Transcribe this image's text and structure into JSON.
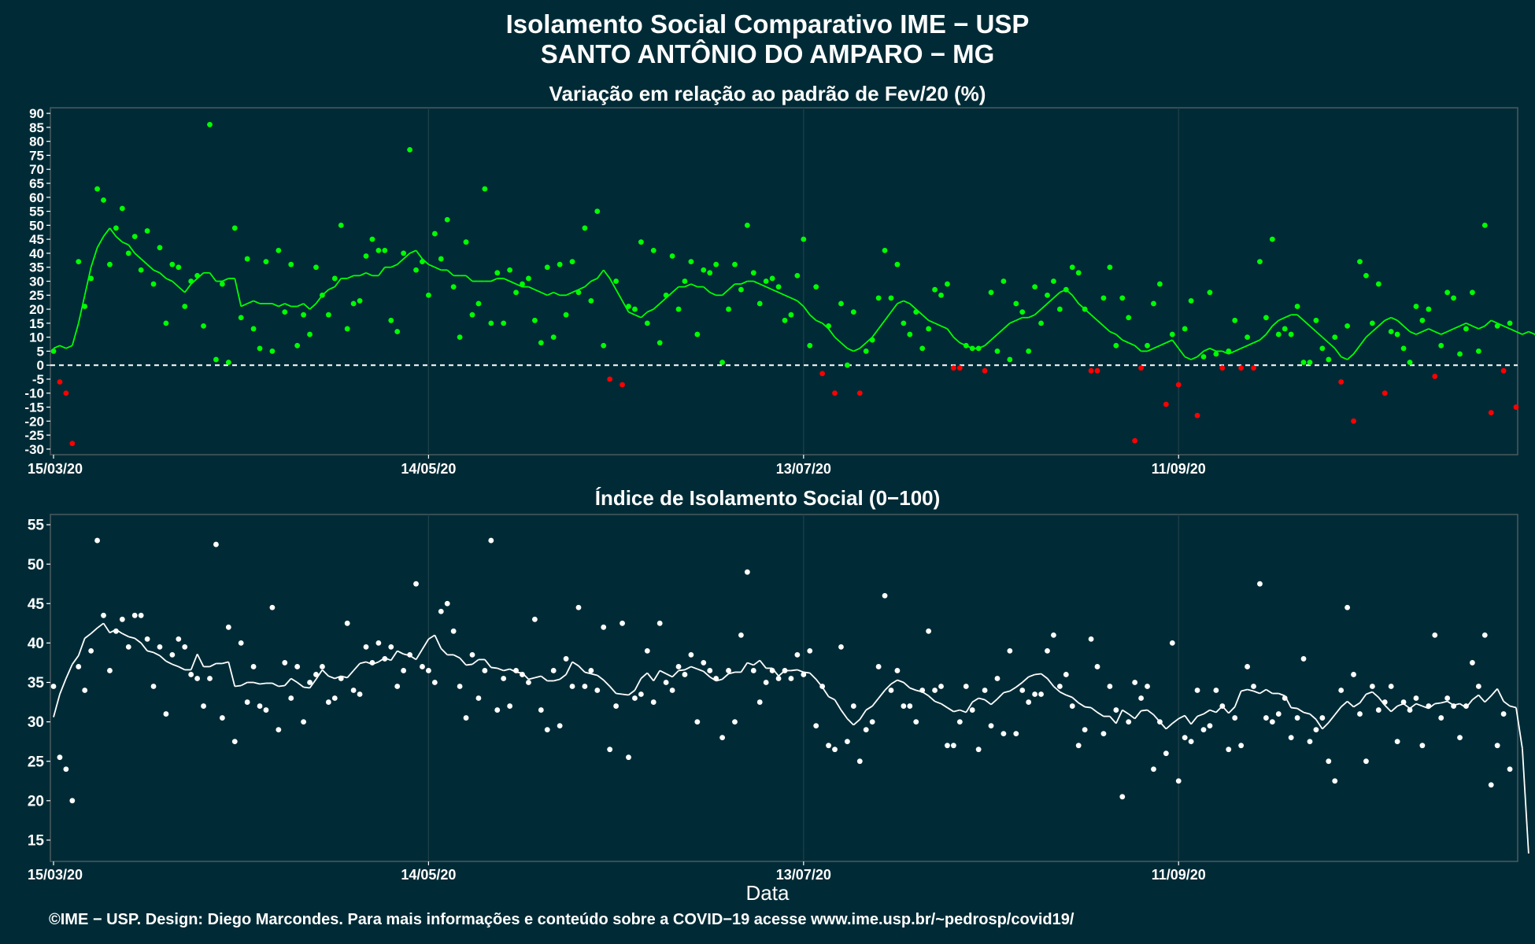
{
  "header": {
    "title": "Isolamento Social Comparativo IME − USP",
    "subtitle": "SANTO ANTÔNIO DO AMPARO − MG"
  },
  "footer": {
    "text": "©IME − USP. Design: Diego Marcondes. Para mais informações e conteúdo sobre a COVID−19 acesse www.ime.usp.br/~pedrosp/covid19/"
  },
  "colors": {
    "background": "#002b36",
    "positive": "#00ff00",
    "negative": "#ff0000",
    "index": "#ffffff"
  },
  "chart_data": [
    {
      "type": "scatter",
      "title": "Variação em relação ao padrão de Fev/20 (%)",
      "xlabel": "",
      "ylabel": "",
      "x_start": "15/03/20",
      "x_ticks": [
        "15/03/20",
        "14/05/20",
        "13/07/20",
        "11/09/20"
      ],
      "x_tick_day_offsets": [
        0,
        60,
        120,
        180
      ],
      "ylim": [
        -32,
        92
      ],
      "y_ticks": [
        90,
        85,
        80,
        75,
        70,
        65,
        60,
        55,
        50,
        45,
        40,
        35,
        30,
        25,
        20,
        15,
        10,
        5,
        0,
        -5,
        -10,
        -15,
        -20,
        -25,
        -30
      ],
      "reference_line": 0,
      "points": [
        5,
        -6,
        -10,
        -28,
        37,
        21,
        31,
        63,
        59,
        36,
        49,
        56,
        40,
        46,
        34,
        48,
        29,
        42,
        15,
        36,
        35,
        21,
        30,
        32,
        14,
        86,
        2,
        29,
        1,
        49,
        17,
        38,
        13,
        6,
        37,
        5,
        41,
        19,
        36,
        7,
        18,
        11,
        35,
        25,
        18,
        31,
        50,
        13,
        22,
        23,
        39,
        45,
        41,
        41,
        16,
        12,
        40,
        77,
        34,
        37,
        25,
        47,
        38,
        52,
        28,
        10,
        44,
        18,
        22,
        63,
        15,
        33,
        15,
        34,
        26,
        29,
        31,
        16,
        8,
        35,
        10,
        36,
        18,
        37,
        26,
        49,
        23,
        55,
        7,
        -5,
        30,
        -7,
        21,
        20,
        44,
        15,
        41,
        8,
        25,
        39,
        20,
        30,
        37,
        11,
        34,
        33,
        36,
        1,
        20,
        36,
        27,
        50,
        33,
        22,
        30,
        31,
        28,
        16,
        18,
        32,
        45,
        7,
        28,
        -3,
        14,
        -10,
        22,
        0,
        19,
        -10,
        5,
        9,
        24,
        41,
        24,
        36,
        15,
        11,
        19,
        6,
        13,
        27,
        25,
        29,
        -1,
        -1,
        7,
        6,
        6,
        -2,
        26,
        5,
        30,
        2,
        22,
        19,
        5,
        28,
        15,
        25,
        30,
        20,
        27,
        35,
        33,
        20,
        -2,
        -2,
        24,
        35,
        7,
        24,
        17,
        -27,
        -1,
        7,
        22,
        29,
        -14,
        11,
        -7,
        13,
        23,
        -18,
        3,
        26,
        4,
        -1,
        5,
        16,
        -1,
        10,
        -1,
        37,
        17,
        45,
        11,
        13,
        11,
        21,
        1,
        1,
        16,
        6,
        2,
        10,
        -6,
        14,
        -20,
        37,
        32,
        15,
        29,
        -10,
        12,
        11,
        6,
        1,
        21,
        16,
        20,
        -4,
        7,
        26,
        24,
        4,
        13,
        26,
        5,
        50,
        -17,
        14,
        -2,
        15,
        -15
      ],
      "moving_average": [
        6,
        7,
        6,
        7,
        15,
        25,
        35,
        42,
        46,
        49,
        46,
        44,
        43,
        40,
        38,
        36,
        34,
        33,
        31,
        30,
        28,
        26,
        29,
        31,
        33,
        33,
        30,
        30,
        31,
        31,
        21,
        22,
        23,
        22,
        22,
        22,
        21,
        22,
        21,
        21,
        22,
        20,
        22,
        25,
        27,
        28,
        31,
        31,
        32,
        32,
        33,
        32,
        32,
        35,
        35,
        36,
        38,
        40,
        41,
        38,
        36,
        35,
        34,
        34,
        32,
        32,
        32,
        30,
        30,
        30,
        30,
        31,
        31,
        30,
        29,
        28,
        28,
        27,
        26,
        25,
        26,
        25,
        25,
        26,
        27,
        28,
        30,
        31,
        34,
        31,
        27,
        23,
        19,
        18,
        17,
        19,
        20,
        22,
        24,
        26,
        28,
        28,
        29,
        28,
        28,
        26,
        25,
        25,
        27,
        29,
        29,
        30,
        30,
        29,
        28,
        27,
        26,
        25,
        24,
        23,
        21,
        18,
        16,
        15,
        13,
        10,
        8,
        6,
        5,
        6,
        8,
        10,
        13,
        16,
        19,
        22,
        23,
        22,
        20,
        18,
        16,
        15,
        14,
        13,
        10,
        8,
        7,
        6,
        6,
        7,
        9,
        11,
        13,
        15,
        16,
        17,
        17,
        18,
        20,
        22,
        24,
        26,
        27,
        25,
        22,
        20,
        18,
        16,
        14,
        12,
        11,
        9,
        8,
        7,
        5,
        5,
        6,
        7,
        8,
        9,
        6,
        3,
        2,
        3,
        5,
        6,
        5,
        5,
        4,
        5,
        6,
        7,
        8,
        9,
        11,
        14,
        16,
        17,
        18,
        18,
        16,
        14,
        12,
        10,
        8,
        6,
        3,
        2,
        4,
        7,
        10,
        12,
        14,
        16,
        17,
        16,
        14,
        12,
        11,
        12,
        13,
        12,
        11,
        12,
        13,
        14,
        15,
        14,
        13,
        14,
        16,
        15,
        14,
        13,
        12,
        11,
        12,
        11,
        9
      ]
    },
    {
      "type": "scatter",
      "title": "Índice de Isolamento Social (0−100)",
      "xlabel": "Data",
      "ylabel": "",
      "x_start": "15/03/20",
      "x_ticks": [
        "15/03/20",
        "14/05/20",
        "13/07/20",
        "11/09/20"
      ],
      "x_tick_day_offsets": [
        0,
        60,
        120,
        180
      ],
      "ylim": [
        12.3,
        56.3
      ],
      "y_ticks": [
        55,
        50,
        45,
        40,
        35,
        30,
        25,
        20,
        15
      ],
      "points": [
        34.5,
        25.5,
        24,
        20,
        37,
        34,
        39,
        53,
        43.5,
        36.5,
        41.5,
        43,
        39.5,
        43.5,
        43.5,
        40.5,
        34.5,
        39.5,
        31,
        38.5,
        40.5,
        39.5,
        36,
        35.5,
        32,
        35.5,
        52.5,
        30.5,
        42,
        27.5,
        40,
        32.5,
        37,
        32,
        31.5,
        44.5,
        29,
        37.5,
        33,
        37,
        30,
        35,
        36,
        37,
        32.5,
        33,
        35.5,
        42.5,
        34,
        33.5,
        39.5,
        37.5,
        40,
        38,
        39.5,
        34.5,
        36.5,
        38.5,
        47.5,
        37,
        36.5,
        35,
        44,
        45,
        41.5,
        34.5,
        30.5,
        38.5,
        33,
        36.5,
        53,
        31.5,
        35.5,
        32,
        36.5,
        36,
        35,
        43,
        31.5,
        29,
        36.5,
        29.5,
        38,
        34.5,
        44.5,
        34.5,
        36.5,
        34,
        42,
        26.5,
        32,
        42.5,
        25.5,
        33,
        33.5,
        39,
        32.5,
        42.5,
        35,
        34,
        37,
        36,
        38.5,
        30,
        37.5,
        36.5,
        35.5,
        28,
        36.5,
        30,
        41,
        49,
        36.5,
        32.5,
        35,
        36.5,
        35.5,
        36.5,
        35.5,
        38.5,
        36,
        39,
        29.5,
        34.5,
        27,
        26.5,
        39.5,
        27.5,
        32,
        25,
        29,
        30,
        37,
        46,
        34,
        36.5,
        32,
        32,
        30,
        34,
        41.5,
        34,
        34.5,
        27,
        27,
        30,
        34.5,
        31.5,
        26.5,
        34,
        29.5,
        35.5,
        28.5,
        39,
        28.5,
        34,
        32.5,
        33.5,
        33.5,
        39,
        41,
        34.5,
        36,
        32,
        27,
        29,
        40.5,
        37,
        28.5,
        34.5,
        31.5,
        20.5,
        30,
        35,
        33,
        34.5,
        24,
        30,
        26,
        40,
        22.5,
        28,
        27.5,
        34,
        29,
        29.5,
        34,
        32,
        26.5,
        30.5,
        27,
        37,
        34.5,
        47.5,
        30.5,
        30,
        31,
        33,
        28,
        30.5,
        38,
        27.5,
        29,
        30.5,
        25,
        22.5,
        34,
        44.5,
        36,
        31,
        25,
        34.5,
        31.5,
        32.5,
        34.5,
        27.5,
        32.5,
        31.5,
        33,
        27,
        32,
        41,
        30.5,
        33,
        32,
        28,
        32,
        37.5,
        34.5,
        41,
        22,
        27,
        31,
        24
      ],
      "moving_average": [
        30.6,
        33.5,
        35.5,
        37.3,
        38.4,
        40.6,
        41.2,
        41.9,
        42.5,
        41.3,
        41.7,
        41.2,
        40.8,
        40.6,
        40,
        39,
        38.8,
        38.4,
        37.7,
        37.3,
        37,
        36.6,
        36.6,
        38.6,
        37,
        37,
        37.4,
        37.4,
        37.6,
        34.5,
        34.6,
        35,
        35,
        34.8,
        34.9,
        34.9,
        34.5,
        34.6,
        35.5,
        35,
        34.4,
        34.3,
        35.4,
        36.6,
        35.8,
        35.5,
        35.8,
        35.6,
        36.5,
        37.4,
        37.6,
        37.3,
        37.6,
        38.1,
        37.8,
        39,
        38.6,
        38.4,
        37.9,
        39.2,
        40.5,
        41,
        39.3,
        38.5,
        38.5,
        38.1,
        37.2,
        37.3,
        37.9,
        37.9,
        36.9,
        36.8,
        36.5,
        36.7,
        36.3,
        36.2,
        35.4,
        35.6,
        35.8,
        35.2,
        35.2,
        35.4,
        36,
        37.6,
        37.1,
        36.3,
        36.1,
        35.9,
        35.3,
        34.5,
        33.6,
        33.5,
        33.4,
        34,
        35.5,
        36.2,
        35.2,
        36.5,
        36.1,
        35.7,
        36.5,
        36.6,
        37,
        36.7,
        36.4,
        35.7,
        35.2,
        35.4,
        36.1,
        36.3,
        36.3,
        37.5,
        37.2,
        37.8,
        36.8,
        36.8,
        35.8,
        36.5,
        36.5,
        36.6,
        36.3,
        36.2,
        35.4,
        34.4,
        33.2,
        32.8,
        31.5,
        30.4,
        29.6,
        30.3,
        31.5,
        32,
        33,
        34,
        34.8,
        35.3,
        35,
        34.3,
        34,
        33.8,
        33.3,
        32.6,
        32.3,
        31.8,
        31.3,
        31.5,
        31.2,
        32.5,
        33,
        32.8,
        32.2,
        32.9,
        33.7,
        33.9,
        34.4,
        35,
        35.7,
        36,
        36.1,
        35.5,
        34.5,
        33.8,
        33.4,
        33.1,
        32.4,
        31.9,
        31.8,
        31.2,
        30.7,
        30.7,
        29.8,
        31.5,
        31,
        30.4,
        31.4,
        31.5,
        30.9,
        30,
        29.1,
        29.8,
        30.4,
        30.8,
        29.7,
        30.7,
        31,
        31.5,
        31.2,
        32,
        31.1,
        31.9,
        33.9,
        34.1,
        33.9,
        33.6,
        34.1,
        33.6,
        33.6,
        33.3,
        31.8,
        31.7,
        31.2,
        31,
        30.3,
        29.1,
        29.9,
        30.9,
        31.9,
        32.6,
        31.9,
        32.4,
        33.5,
        33.8,
        33.1,
        32.1,
        31.3,
        32,
        32.3,
        31.7,
        32.3,
        32,
        31.7,
        32.3,
        32.4,
        32.6,
        32.1,
        32.3,
        31.8,
        32.8,
        33.4,
        32.5,
        33.3,
        34.2,
        32.6,
        32,
        31.8,
        26.6,
        13.3
      ]
    }
  ]
}
